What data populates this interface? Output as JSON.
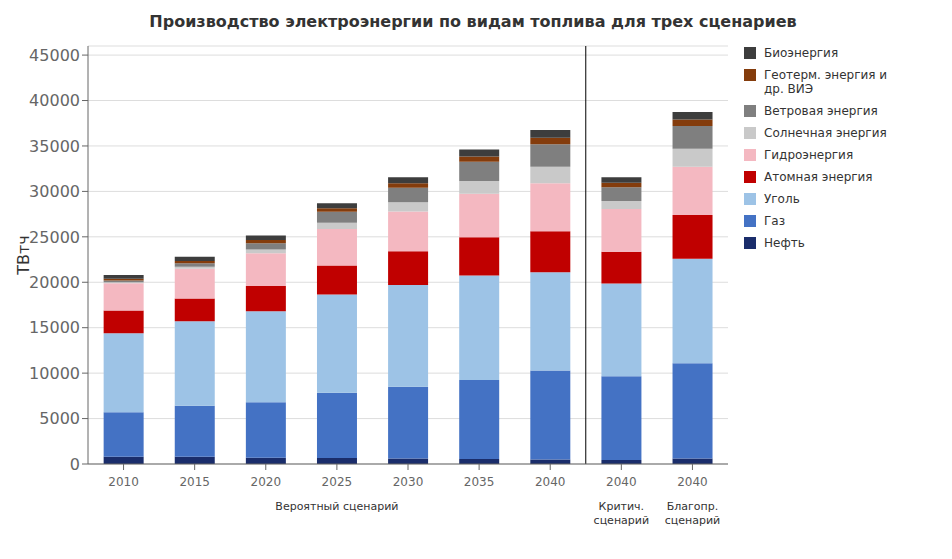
{
  "chart_data": {
    "type": "bar",
    "title": "Производство электроэнергии по видам топлива для трех сценариев",
    "ylabel": "ТВтч",
    "categories": [
      "2010",
      "2015",
      "2020",
      "2025",
      "2030",
      "2035",
      "2040",
      "2040",
      "2040"
    ],
    "series": [
      {
        "name": "Нефть",
        "color": "#1a2d6b",
        "values": [
          800,
          800,
          700,
          650,
          600,
          550,
          500,
          450,
          600
        ]
      },
      {
        "name": "Газ",
        "color": "#4472c4",
        "values": [
          4900,
          5600,
          6100,
          7200,
          7900,
          8700,
          9800,
          9200,
          10500
        ]
      },
      {
        "name": "Уголь",
        "color": "#9dc3e6",
        "values": [
          8700,
          9300,
          10000,
          10800,
          11200,
          11500,
          10800,
          10200,
          11500
        ]
      },
      {
        "name": "Атомная энергия",
        "color": "#c00000",
        "values": [
          2500,
          2500,
          2800,
          3200,
          3700,
          4200,
          4500,
          3500,
          4800
        ]
      },
      {
        "name": "Гидроэнергия",
        "color": "#f4b8c1",
        "values": [
          3000,
          3300,
          3600,
          4000,
          4400,
          4800,
          5300,
          4700,
          5300
        ]
      },
      {
        "name": "Солнечная энергия",
        "color": "#c9c9c9",
        "values": [
          100,
          200,
          400,
          700,
          1000,
          1400,
          1800,
          900,
          2000
        ]
      },
      {
        "name": "Ветровая энергия",
        "color": "#7f7f7f",
        "values": [
          200,
          400,
          700,
          1200,
          1600,
          2100,
          2500,
          1500,
          2500
        ]
      },
      {
        "name": "Геотерм. энергия и\nдр. ВИЭ",
        "color": "#843c0c",
        "values": [
          200,
          250,
          350,
          400,
          500,
          600,
          700,
          500,
          700
        ]
      },
      {
        "name": "Биоэнергия",
        "color": "#3d3d3d",
        "values": [
          400,
          450,
          500,
          550,
          650,
          750,
          850,
          600,
          850
        ]
      }
    ],
    "annotations": [
      "Вероятный сценарий",
      "Критич.\nсценарий",
      "Благопр.\nсценарий"
    ],
    "ylim": [
      0,
      46000
    ],
    "yticks": [
      0,
      5000,
      10000,
      15000,
      20000,
      25000,
      30000,
      35000,
      40000,
      45000
    ],
    "stacked": true,
    "grid": true,
    "legend": "right"
  }
}
